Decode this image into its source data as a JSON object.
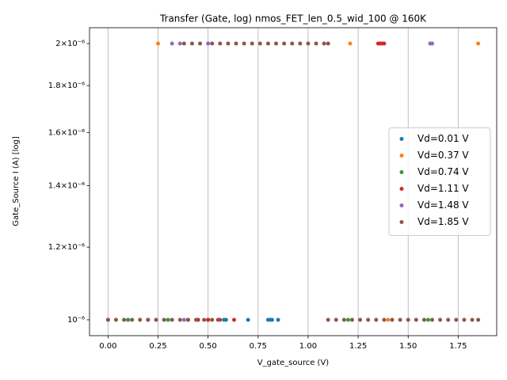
{
  "chart_data": {
    "type": "scatter",
    "title": "Transfer (Gate, log) nmos_FET_len_0.5_wid_100 @ 160K",
    "x_label": "V_gate_source (V)",
    "y_label": "Gate_Source I (A) [log]",
    "log_y": true,
    "grid": "x",
    "legend": "center right",
    "xlim": [
      -0.0925,
      1.9425
    ],
    "ylim": [
      9.61e-07,
      2.081e-06
    ],
    "xticks": [
      {
        "value": 0,
        "label": "0.00"
      },
      {
        "value": 0.25,
        "label": "0.25"
      },
      {
        "value": 0.5,
        "label": "0.50"
      },
      {
        "value": 0.75,
        "label": "0.75"
      },
      {
        "value": 1,
        "label": "1.00"
      },
      {
        "value": 1.25,
        "label": "1.25"
      },
      {
        "value": 1.5,
        "label": "1.50"
      },
      {
        "value": 1.75,
        "label": "1.75"
      }
    ],
    "yticks": [
      {
        "value": 1e-06,
        "label": "10⁻⁶"
      },
      {
        "value": 1.2e-06,
        "label": "1.2×10⁻⁶"
      },
      {
        "value": 1.4e-06,
        "label": "1.4×10⁻⁶"
      },
      {
        "value": 1.6e-06,
        "label": "1.6×10⁻⁶"
      },
      {
        "value": 1.8e-06,
        "label": "1.8×10⁻⁶"
      },
      {
        "value": 2e-06,
        "label": "2×10⁻⁶"
      }
    ],
    "series": [
      {
        "name": "Vd=0.01 V",
        "color": "#1f77b4",
        "x": [
          0.0,
          0.1,
          0.2,
          0.3,
          0.4,
          0.5,
          0.58,
          0.59,
          0.7,
          0.8,
          0.81,
          0.82,
          0.85
        ],
        "values": [
          1e-06,
          1e-06,
          1e-06,
          1e-06,
          1e-06,
          1e-06,
          1e-06,
          1e-06,
          1e-06,
          1e-06,
          1e-06,
          1e-06,
          1e-06
        ]
      },
      {
        "name": "Vd=0.37 V",
        "color": "#ff7f0e",
        "x": [
          0.0,
          0.25,
          0.45,
          1.21,
          1.4,
          1.85
        ],
        "values": [
          1e-06,
          2e-06,
          1e-06,
          2e-06,
          1e-06,
          2e-06
        ]
      },
      {
        "name": "Vd=0.74 V",
        "color": "#2ca02c",
        "x": [
          0.1,
          0.3,
          0.5,
          1.2,
          1.6
        ],
        "values": [
          1e-06,
          1e-06,
          1e-06,
          1e-06,
          1e-06
        ]
      },
      {
        "name": "Vd=1.11 V",
        "color": "#d62728",
        "x": [
          0.4,
          0.45,
          0.5,
          0.55,
          0.63,
          1.35,
          1.36,
          1.37,
          1.38
        ],
        "values": [
          1e-06,
          1e-06,
          1e-06,
          1e-06,
          1e-06,
          2e-06,
          2e-06,
          2e-06,
          2e-06
        ]
      },
      {
        "name": "Vd=1.48 V",
        "color": "#9467bd",
        "x": [
          0.32,
          0.36,
          0.38,
          0.5,
          1.61,
          1.62
        ],
        "values": [
          2e-06,
          2e-06,
          1e-06,
          2e-06,
          2e-06,
          2e-06
        ]
      },
      {
        "name": "Vd=1.85 V",
        "color": "#8c564b",
        "x": [
          0.0,
          0.04,
          0.08,
          0.12,
          0.16,
          0.2,
          0.24,
          0.28,
          0.32,
          0.36,
          0.4,
          0.44,
          0.48,
          0.52,
          0.56,
          0.38,
          0.42,
          0.46,
          0.52,
          0.56,
          0.6,
          0.64,
          0.68,
          0.72,
          0.76,
          0.8,
          0.84,
          0.88,
          0.92,
          0.96,
          1.0,
          1.04,
          1.08,
          1.1,
          1.1,
          1.14,
          1.18,
          1.22,
          1.26,
          1.3,
          1.34,
          1.38,
          1.42,
          1.46,
          1.5,
          1.54,
          1.58,
          1.62,
          1.66,
          1.7,
          1.74,
          1.78,
          1.82,
          1.85
        ],
        "values": [
          1e-06,
          1e-06,
          1e-06,
          1e-06,
          1e-06,
          1e-06,
          1e-06,
          1e-06,
          1e-06,
          1e-06,
          1e-06,
          1e-06,
          1e-06,
          1e-06,
          1e-06,
          2e-06,
          2e-06,
          2e-06,
          2e-06,
          2e-06,
          2e-06,
          2e-06,
          2e-06,
          2e-06,
          2e-06,
          2e-06,
          2e-06,
          2e-06,
          2e-06,
          2e-06,
          2e-06,
          2e-06,
          2e-06,
          2e-06,
          1e-06,
          1e-06,
          1e-06,
          1e-06,
          1e-06,
          1e-06,
          1e-06,
          1e-06,
          1e-06,
          1e-06,
          1e-06,
          1e-06,
          1e-06,
          1e-06,
          1e-06,
          1e-06,
          1e-06,
          1e-06,
          1e-06,
          1e-06
        ]
      }
    ]
  }
}
